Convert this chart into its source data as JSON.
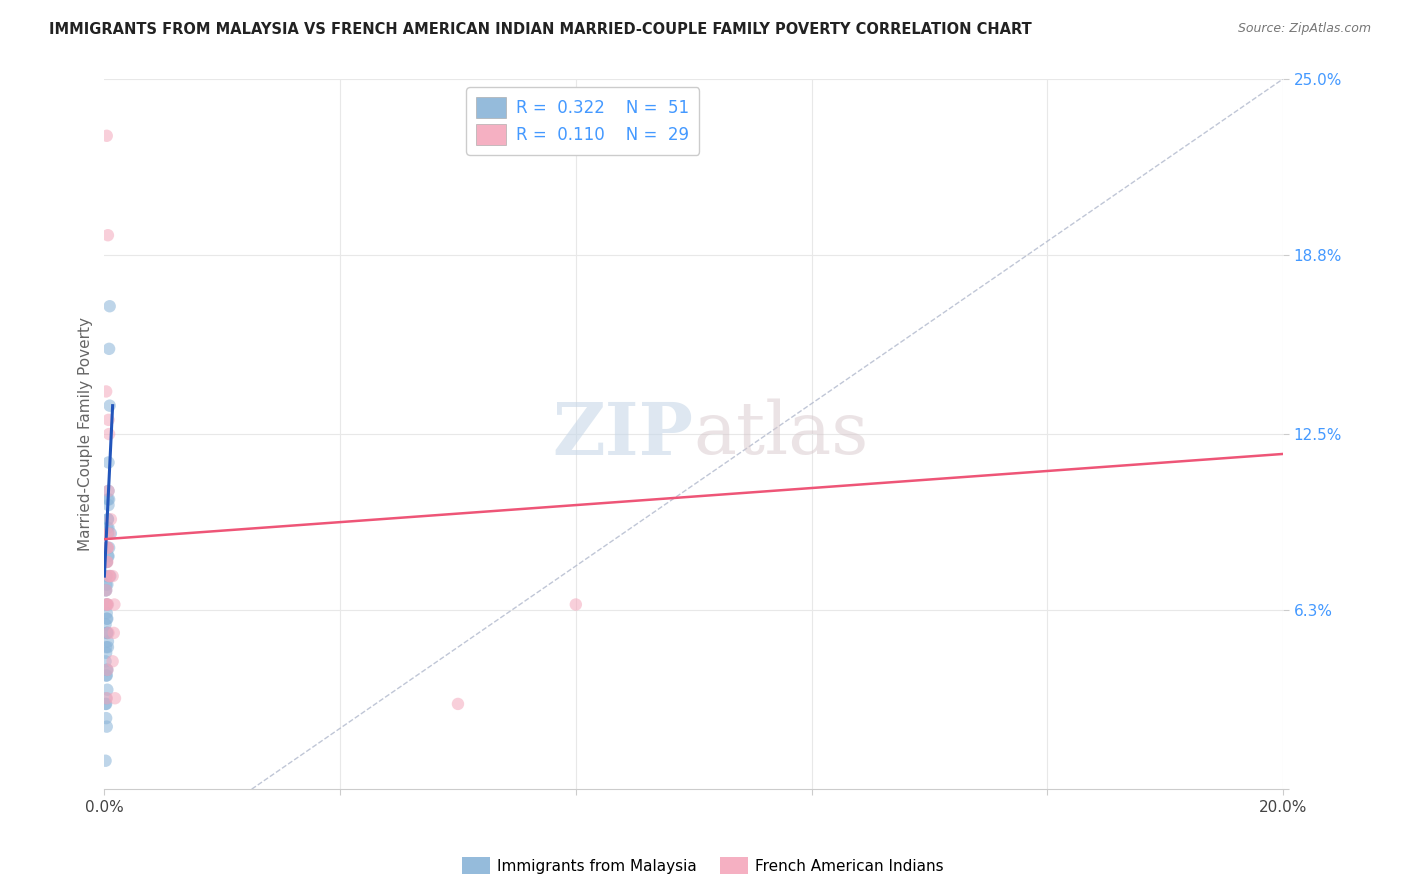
{
  "title": "IMMIGRANTS FROM MALAYSIA VS FRENCH AMERICAN INDIAN MARRIED-COUPLE FAMILY POVERTY CORRELATION CHART",
  "source": "Source: ZipAtlas.com",
  "ylabel": "Married-Couple Family Poverty",
  "xlim": [
    0.0,
    0.2
  ],
  "ylim": [
    0.0,
    0.25
  ],
  "watermark_zip": "ZIP",
  "watermark_atlas": "atlas",
  "legend_entries": [
    {
      "label": "Immigrants from Malaysia",
      "color": "#8ab4d8",
      "R": "0.322",
      "N": "51"
    },
    {
      "label": "French American Indians",
      "color": "#f4a8bc",
      "R": "0.110",
      "N": "29"
    }
  ],
  "blue_scatter_x": [
    0.0002,
    0.0003,
    0.0005,
    0.0003,
    0.0004,
    0.0006,
    0.0004,
    0.0005,
    0.0003,
    0.0002,
    0.0006,
    0.0007,
    0.0004,
    0.0005,
    0.0008,
    0.0009,
    0.0005,
    0.0006,
    0.0007,
    0.0009,
    0.0003,
    0.0002,
    0.0004,
    0.0003,
    0.0005,
    0.0004,
    0.0006,
    0.0007,
    0.0003,
    0.0002,
    0.001,
    0.0004,
    0.0005,
    0.0008,
    0.0011,
    0.0004,
    0.0003,
    0.0002,
    0.0005,
    0.0006,
    0.0007,
    0.0008,
    0.0004,
    0.0003,
    0.0005,
    0.0006,
    0.0004,
    0.0003,
    0.0007,
    0.0005,
    0.0006
  ],
  "blue_scatter_y": [
    0.045,
    0.05,
    0.06,
    0.07,
    0.08,
    0.05,
    0.04,
    0.035,
    0.025,
    0.07,
    0.09,
    0.1,
    0.06,
    0.085,
    0.155,
    0.17,
    0.055,
    0.095,
    0.115,
    0.135,
    0.03,
    0.01,
    0.08,
    0.065,
    0.055,
    0.075,
    0.095,
    0.105,
    0.04,
    0.03,
    0.075,
    0.055,
    0.065,
    0.085,
    0.09,
    0.042,
    0.048,
    0.058,
    0.072,
    0.082,
    0.092,
    0.102,
    0.022,
    0.032,
    0.042,
    0.052,
    0.062,
    0.072,
    0.082,
    0.092,
    0.102
  ],
  "pink_scatter_x": [
    0.0004,
    0.0006,
    0.0003,
    0.0007,
    0.0005,
    0.0009,
    0.0008,
    0.0004,
    0.0003,
    0.0006,
    0.0007,
    0.0005,
    0.0004,
    0.0008,
    0.0009,
    0.0006,
    0.0011,
    0.0007,
    0.0005,
    0.0004,
    0.0014,
    0.0016,
    0.0014,
    0.0017,
    0.0005,
    0.0004,
    0.0018,
    0.08,
    0.06
  ],
  "pink_scatter_y": [
    0.23,
    0.195,
    0.14,
    0.13,
    0.085,
    0.09,
    0.075,
    0.08,
    0.07,
    0.065,
    0.055,
    0.08,
    0.065,
    0.125,
    0.075,
    0.085,
    0.095,
    0.105,
    0.09,
    0.065,
    0.075,
    0.055,
    0.045,
    0.065,
    0.042,
    0.032,
    0.032,
    0.065,
    0.03
  ],
  "blue_line_x": [
    0.0,
    0.0014
  ],
  "blue_line_y": [
    0.075,
    0.135
  ],
  "pink_line_x": [
    0.0,
    0.2
  ],
  "pink_line_y": [
    0.088,
    0.118
  ],
  "dashed_line_x": [
    0.025,
    0.2
  ],
  "dashed_line_y": [
    0.0,
    0.25
  ],
  "scatter_size": 80,
  "scatter_alpha": 0.55,
  "blue_color": "#8ab4d8",
  "pink_color": "#f4a8bc",
  "blue_line_color": "#2255bb",
  "pink_line_color": "#ee5577",
  "dashed_line_color": "#b0b8cc",
  "background_color": "#ffffff",
  "grid_color": "#e8e8e8",
  "ytick_color": "#4499ff",
  "xtick_color": "#444444"
}
